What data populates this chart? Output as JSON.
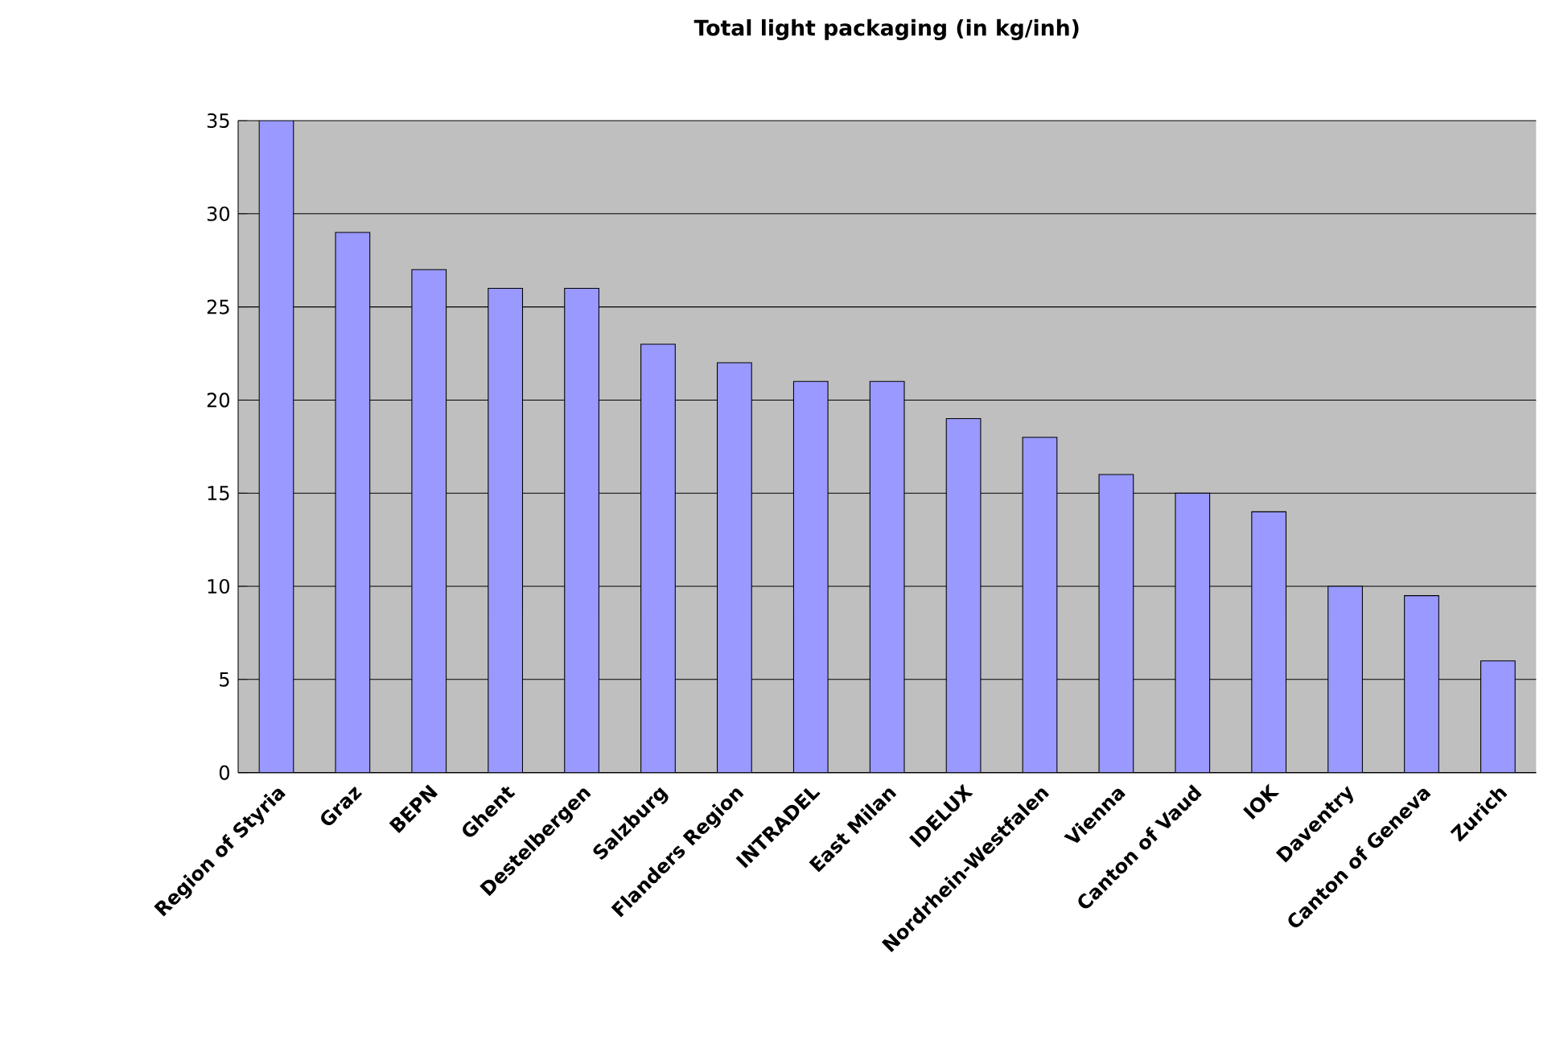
{
  "chart_data": {
    "type": "bar",
    "title": "Total light packaging (in kg/inh)",
    "categories": [
      "Region of Styria",
      "Graz",
      "BEPN",
      "Ghent",
      "Destelbergen",
      "Salzburg",
      "Flanders Region",
      "INTRADEL",
      "East Milan",
      "IDELUX",
      "Nordrhein-Westfalen",
      "Vienna",
      "Canton of Vaud",
      "IOK",
      "Daventry",
      "Canton of Geneva",
      "Zurich"
    ],
    "values": [
      35,
      29,
      27,
      26,
      26,
      23,
      22,
      21,
      21,
      19,
      18,
      16,
      15,
      14,
      10,
      9.5,
      6
    ],
    "color": "#9999ff",
    "ylim": [
      0,
      35
    ],
    "yticks": [
      0,
      5,
      10,
      15,
      20,
      25,
      30,
      35
    ],
    "grid": "y"
  }
}
